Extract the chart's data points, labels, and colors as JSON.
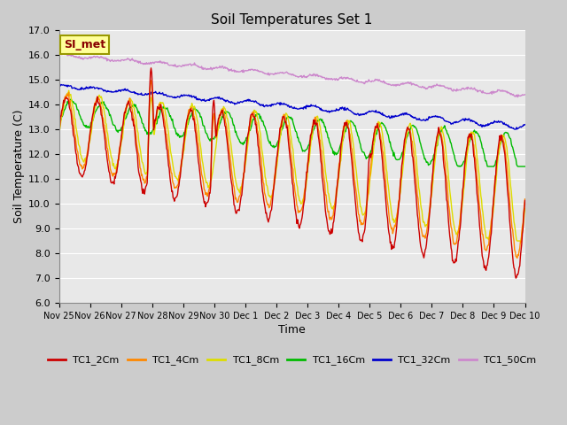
{
  "title": "Soil Temperatures Set 1",
  "xlabel": "Time",
  "ylabel": "Soil Temperature (C)",
  "ylim": [
    6.0,
    17.0
  ],
  "yticks": [
    6.0,
    7.0,
    8.0,
    9.0,
    10.0,
    11.0,
    12.0,
    13.0,
    14.0,
    15.0,
    16.0,
    17.0
  ],
  "fig_bg": "#cccccc",
  "plot_bg": "#e8e8e8",
  "annotation_text": "SI_met",
  "annotation_box_color": "#ffff99",
  "annotation_box_edge": "#999900",
  "series": {
    "TC1_2Cm": {
      "color": "#cc0000",
      "lw": 1.0
    },
    "TC1_4Cm": {
      "color": "#ff8800",
      "lw": 1.0
    },
    "TC1_8Cm": {
      "color": "#dddd00",
      "lw": 1.0
    },
    "TC1_16Cm": {
      "color": "#00bb00",
      "lw": 1.0
    },
    "TC1_32Cm": {
      "color": "#0000cc",
      "lw": 1.0
    },
    "TC1_50Cm": {
      "color": "#cc88cc",
      "lw": 1.0
    }
  },
  "n_points": 720,
  "x_start": 0,
  "x_end": 15,
  "xtick_positions": [
    0,
    1,
    2,
    3,
    4,
    5,
    6,
    7,
    8,
    9,
    10,
    11,
    12,
    13,
    14,
    15
  ],
  "xtick_labels": [
    "Nov 25",
    "Nov 26",
    "Nov 27",
    "Nov 28",
    "Nov 29",
    "Nov 30",
    "Dec 1",
    "Dec 2",
    "Dec 3",
    "Dec 4",
    "Dec 5",
    "Dec 6",
    "Dec 7",
    "Dec 8",
    "Dec 9",
    "Dec 10"
  ]
}
